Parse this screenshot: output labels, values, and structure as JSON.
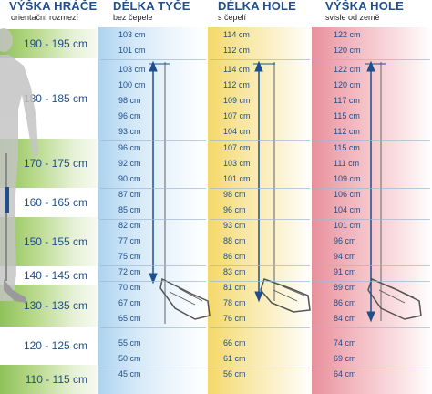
{
  "headers": {
    "player": {
      "title": "VÝŠKA HRÁČE",
      "sub": "orientační rozmezí"
    },
    "blade": {
      "title": "DÉLKA TYČE",
      "sub": "bez čepele"
    },
    "stick": {
      "title": "DÉLKA HOLE",
      "sub": "s čepelí"
    },
    "vertical": {
      "title": "VÝŠKA HOLE",
      "sub": "svisle od země"
    }
  },
  "player_ranges": [
    "190 - 195 cm",
    "180 - 185 cm",
    "170 - 175 cm",
    "160 - 165 cm",
    "150 - 155 cm",
    "140 - 145 cm",
    "130 - 135 cm",
    "120 - 125 cm",
    "110 - 115 cm"
  ],
  "blade_lengths": [
    "103 cm",
    "101 cm",
    "103 cm",
    "100 cm",
    "98 cm",
    "96 cm",
    "93 cm",
    "96 cm",
    "92 cm",
    "90 cm",
    "87 cm",
    "85 cm",
    "82 cm",
    "77 cm",
    "75 cm",
    "72 cm",
    "70 cm",
    "67 cm",
    "65 cm",
    "55 cm",
    "50 cm",
    "45 cm"
  ],
  "stick_lengths": [
    "114 cm",
    "112 cm",
    "114 cm",
    "112 cm",
    "109 cm",
    "107 cm",
    "104 cm",
    "107 cm",
    "103 cm",
    "101 cm",
    "98 cm",
    "96 cm",
    "93 cm",
    "88 cm",
    "86 cm",
    "83 cm",
    "81 cm",
    "78 cm",
    "76 cm",
    "66 cm",
    "61 cm",
    "56 cm"
  ],
  "vertical_heights": [
    "122 cm",
    "120 cm",
    "122 cm",
    "120 cm",
    "117 cm",
    "115 cm",
    "112 cm",
    "115 cm",
    "111 cm",
    "109 cm",
    "106 cm",
    "104 cm",
    "101 cm",
    "96 cm",
    "94 cm",
    "91 cm",
    "89 cm",
    "86 cm",
    "84 cm",
    "74 cm",
    "69 cm",
    "64 cm"
  ]
}
